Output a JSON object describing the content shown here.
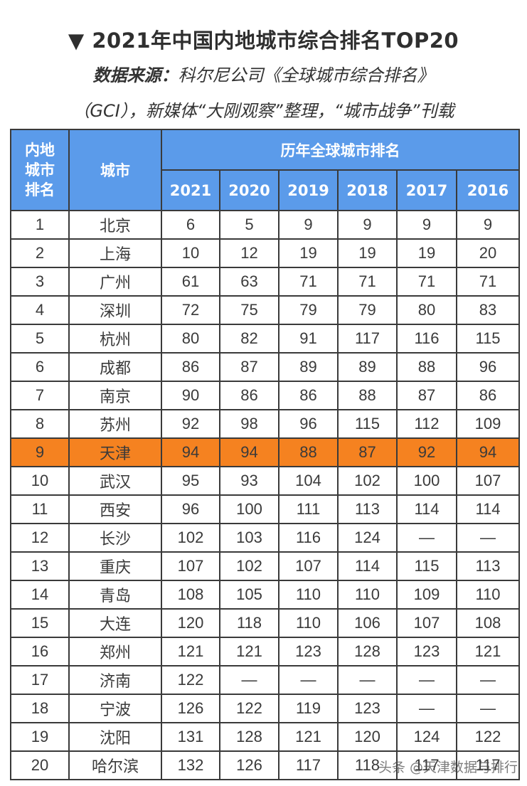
{
  "header": {
    "title_marker": "▼",
    "title": "2021年中国内地城市综合排名TOP20",
    "source_lead": "数据来源：",
    "source_line1": "科尔尼公司《全球城市综合排名》",
    "source_line2": "（GCI），新媒体“大刚观察”整理，“城市战争”刊载"
  },
  "table": {
    "rank_header": [
      "内地",
      "城市",
      "排名"
    ],
    "city_header": "城市",
    "group_header": "历年全球城市排名",
    "years": [
      "2021",
      "2020",
      "2019",
      "2018",
      "2017",
      "2016"
    ],
    "highlight_color": "#f58220",
    "header_color": "#5b9bea",
    "rows": [
      {
        "rank": "1",
        "city": "北京",
        "values": [
          "6",
          "5",
          "9",
          "9",
          "9",
          "9"
        ]
      },
      {
        "rank": "2",
        "city": "上海",
        "values": [
          "10",
          "12",
          "19",
          "19",
          "19",
          "20"
        ]
      },
      {
        "rank": "3",
        "city": "广州",
        "values": [
          "61",
          "63",
          "71",
          "71",
          "71",
          "71"
        ]
      },
      {
        "rank": "4",
        "city": "深圳",
        "values": [
          "72",
          "75",
          "79",
          "79",
          "80",
          "83"
        ]
      },
      {
        "rank": "5",
        "city": "杭州",
        "values": [
          "80",
          "82",
          "91",
          "117",
          "116",
          "115"
        ]
      },
      {
        "rank": "6",
        "city": "成都",
        "values": [
          "86",
          "87",
          "89",
          "89",
          "88",
          "96"
        ]
      },
      {
        "rank": "7",
        "city": "南京",
        "values": [
          "90",
          "86",
          "86",
          "88",
          "87",
          "86"
        ]
      },
      {
        "rank": "8",
        "city": "苏州",
        "values": [
          "92",
          "98",
          "96",
          "115",
          "112",
          "109"
        ]
      },
      {
        "rank": "9",
        "city": "天津",
        "values": [
          "94",
          "94",
          "88",
          "87",
          "92",
          "94"
        ],
        "highlight": true
      },
      {
        "rank": "10",
        "city": "武汉",
        "values": [
          "95",
          "93",
          "104",
          "102",
          "100",
          "107"
        ]
      },
      {
        "rank": "11",
        "city": "西安",
        "values": [
          "96",
          "100",
          "111",
          "113",
          "114",
          "114"
        ]
      },
      {
        "rank": "12",
        "city": "长沙",
        "values": [
          "102",
          "103",
          "116",
          "124",
          "—",
          "—"
        ]
      },
      {
        "rank": "13",
        "city": "重庆",
        "values": [
          "107",
          "102",
          "107",
          "114",
          "115",
          "113"
        ]
      },
      {
        "rank": "14",
        "city": "青岛",
        "values": [
          "108",
          "105",
          "110",
          "110",
          "109",
          "110"
        ]
      },
      {
        "rank": "15",
        "city": "大连",
        "values": [
          "120",
          "118",
          "110",
          "106",
          "107",
          "108"
        ]
      },
      {
        "rank": "16",
        "city": "郑州",
        "values": [
          "121",
          "121",
          "123",
          "128",
          "123",
          "121"
        ]
      },
      {
        "rank": "17",
        "city": "济南",
        "values": [
          "122",
          "—",
          "—",
          "—",
          "—",
          "—"
        ]
      },
      {
        "rank": "18",
        "city": "宁波",
        "values": [
          "126",
          "122",
          "119",
          "123",
          "—",
          "—"
        ]
      },
      {
        "rank": "19",
        "city": "沈阳",
        "values": [
          "131",
          "128",
          "121",
          "120",
          "124",
          "122"
        ]
      },
      {
        "rank": "20",
        "city": "哈尔滨",
        "values": [
          "132",
          "126",
          "117",
          "118",
          "117",
          "117"
        ]
      }
    ]
  },
  "watermark": "头条 @天津数据与排行"
}
